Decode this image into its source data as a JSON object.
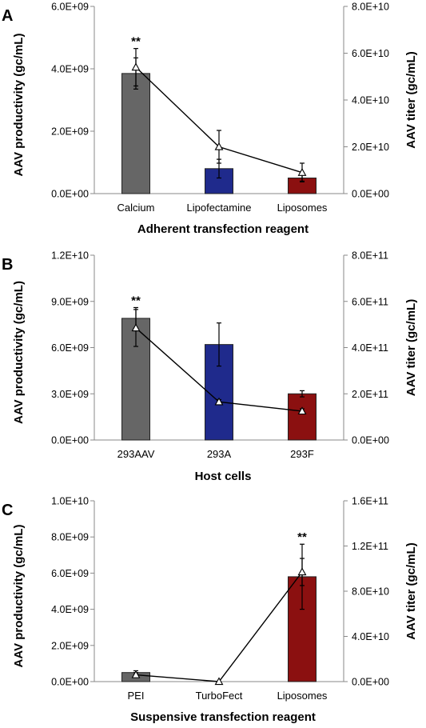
{
  "chart_data": [
    {
      "panel": "A",
      "type": "bar",
      "categories": [
        "Calcium",
        "Lipofectamine",
        "Liposomes"
      ],
      "xlabel": "Adherent transfection reagent",
      "ylabel_left": "AAV productivity (gc/mL)",
      "ylabel_right": "AAV titer (gc/mL)",
      "ylim_left": [
        0,
        6000000000.0
      ],
      "ylim_right": [
        0,
        80000000000.0
      ],
      "yticks_left": [
        "0.0E+00",
        "2.0E+09",
        "4.0E+09",
        "6.0E+09"
      ],
      "yticks_right": [
        "0.0E+00",
        "2.0E+10",
        "4.0E+10",
        "6.0E+10",
        "8.0E+10"
      ],
      "bar_colors": [
        "#666666",
        "#1f2a8c",
        "#8b1010"
      ],
      "series": [
        {
          "kind": "bar",
          "axis": "left",
          "values": [
            3850000000.0,
            800000000.0,
            500000000.0
          ],
          "errors": [
            500000000.0,
            300000000.0,
            100000000.0
          ]
        },
        {
          "kind": "line",
          "axis": "right",
          "values": [
            54000000000.0,
            20000000000.0,
            9000000000.0
          ],
          "errors": [
            8000000000.0,
            7000000000.0,
            4000000000.0
          ]
        }
      ],
      "annotations": [
        {
          "category": "Calcium",
          "text": "**"
        }
      ]
    },
    {
      "panel": "B",
      "type": "bar",
      "categories": [
        "293AAV",
        "293A",
        "293F"
      ],
      "xlabel": "Host cells",
      "ylabel_left": "AAV productivity (gc/mL)",
      "ylabel_right": "AAV titer (gc/mL)",
      "ylim_left": [
        0,
        12000000000.0
      ],
      "ylim_right": [
        0,
        800000000000.0
      ],
      "yticks_left": [
        "0.0E+00",
        "3.0E+09",
        "6.0E+09",
        "9.0E+09",
        "1.2E+10"
      ],
      "yticks_right": [
        "0.0E+00",
        "2.0E+11",
        "4.0E+11",
        "6.0E+11",
        "8.0E+11"
      ],
      "bar_colors": [
        "#666666",
        "#1f2a8c",
        "#8b1010"
      ],
      "series": [
        {
          "kind": "bar",
          "axis": "left",
          "values": [
            7900000000.0,
            6200000000.0,
            3000000000.0
          ],
          "errors": [
            700000000.0,
            1400000000.0,
            200000000.0
          ]
        },
        {
          "kind": "line",
          "axis": "right",
          "values": [
            485000000000.0,
            165000000000.0,
            125000000000.0
          ],
          "errors": [
            80000000000.0,
            10000000000.0,
            10000000000.0
          ]
        }
      ],
      "annotations": [
        {
          "category": "293AAV",
          "text": "**"
        }
      ]
    },
    {
      "panel": "C",
      "type": "bar",
      "categories": [
        "PEI",
        "TurboFect",
        "Liposomes"
      ],
      "xlabel": "Suspensive transfection reagent",
      "ylabel_left": "AAV productivity (gc/mL)",
      "ylabel_right": "AAV titer (gc/mL)",
      "ylim_left": [
        0,
        10000000000.0
      ],
      "ylim_right": [
        0,
        160000000000.0
      ],
      "yticks_left": [
        "0.0E+00",
        "2.0E+09",
        "4.0E+09",
        "6.0E+09",
        "8.0E+09",
        "1.0E+10"
      ],
      "yticks_right": [
        "0.0E+00",
        "4.0E+10",
        "8.0E+10",
        "1.2E+11",
        "1.6E+11"
      ],
      "bar_colors": [
        "#666666",
        "#1f2a8c",
        "#8b1010"
      ],
      "series": [
        {
          "kind": "bar",
          "axis": "left",
          "values": [
            500000000.0,
            0,
            5800000000.0
          ],
          "errors": [
            100000000.0,
            0,
            1800000000.0
          ]
        },
        {
          "kind": "line",
          "axis": "right",
          "values": [
            6000000000.0,
            0,
            97000000000.0
          ],
          "errors": [
            2000000000.0,
            0,
            12000000000.0
          ]
        }
      ],
      "annotations": [
        {
          "category": "Liposomes",
          "text": "**"
        }
      ]
    }
  ]
}
